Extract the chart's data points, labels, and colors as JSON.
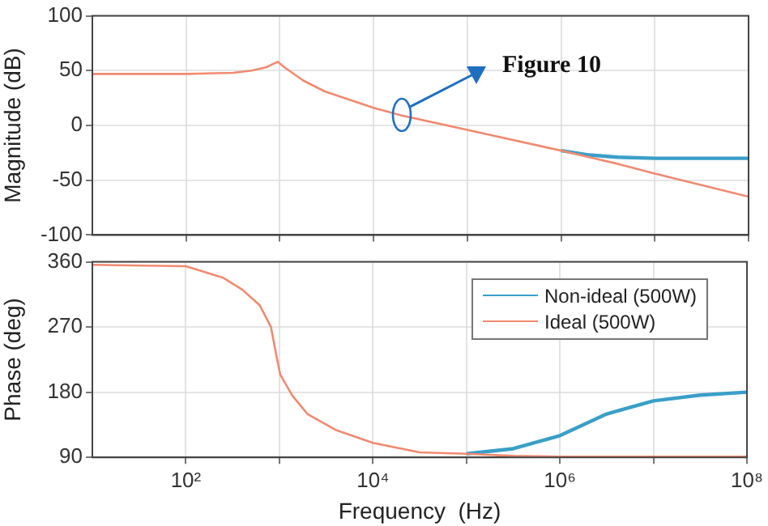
{
  "chart_data": [
    {
      "type": "line",
      "ylabel": "Magnitude (dB)",
      "x": [
        10,
        100,
        316,
        501,
        708,
        891,
        955,
        1122,
        1778,
        3020,
        10000,
        20000,
        100000,
        1000000,
        2000000,
        4000000,
        10000000,
        100000000
      ],
      "series": [
        {
          "color": "#3a9fc8",
          "values": [
            null,
            null,
            null,
            null,
            null,
            null,
            null,
            null,
            null,
            null,
            null,
            null,
            null,
            -23,
            -27,
            -29,
            -30,
            -30
          ]
        },
        {
          "color": "#f08a70",
          "values": [
            47,
            47,
            48,
            50,
            53,
            57,
            58,
            53,
            41,
            31,
            16,
            9,
            -4,
            -23,
            -29,
            -35,
            -44,
            -65
          ]
        }
      ],
      "log": "x",
      "xlim": [
        10,
        100000000
      ],
      "xticks": [
        {
          "value": 100,
          "label": null
        },
        {
          "value": 1000,
          "label": null
        },
        {
          "value": 10000,
          "label": null
        },
        {
          "value": 100000,
          "label": null
        },
        {
          "value": 1000000,
          "label": null
        },
        {
          "value": 10000000,
          "label": null
        },
        {
          "value": 100000000,
          "label": null
        }
      ],
      "ylim": [
        -100,
        100
      ],
      "yticks": [
        -100,
        -50,
        0,
        50,
        100
      ],
      "tick_labels": "y",
      "grid": true,
      "marker": "none",
      "line_style": "solid",
      "annotations": [
        {
          "text": "Figure 10",
          "x": 20000,
          "y": 9
        }
      ]
    },
    {
      "type": "line",
      "ylabel": "Phase (deg)",
      "xlabel": "Frequency  (Hz)",
      "x": [
        10,
        100,
        251,
        398,
        617,
        813,
        933,
        1023,
        1380,
        1995,
        3981,
        10000,
        31623,
        100000,
        316228,
        1000000,
        3162278,
        10000000,
        31622777,
        100000000
      ],
      "series": [
        {
          "name": "Non-ideal (500W)",
          "color": "#3a9fc8",
          "values": [
            null,
            null,
            null,
            null,
            null,
            null,
            null,
            null,
            null,
            null,
            null,
            null,
            null,
            95,
            102,
            120,
            150,
            168,
            176,
            180
          ]
        },
        {
          "name": "Ideal (500W)",
          "color": "#f08a70",
          "values": [
            356,
            354,
            338,
            322,
            300,
            270,
            229,
            204,
            175,
            150,
            128,
            110,
            97,
            95,
            92,
            91,
            91,
            91,
            91,
            91
          ]
        }
      ],
      "log": "x",
      "xlim": [
        10,
        100000000
      ],
      "xticks": [
        {
          "value": 100,
          "label": "10²"
        },
        {
          "value": 1000,
          "label": null
        },
        {
          "value": 10000,
          "label": "10⁴"
        },
        {
          "value": 100000,
          "label": null
        },
        {
          "value": 1000000,
          "label": "10⁶"
        },
        {
          "value": 10000000,
          "label": null
        },
        {
          "value": 100000000,
          "label": "10⁸"
        }
      ],
      "ylim": [
        90,
        360
      ],
      "yticks": [
        90,
        180,
        270,
        360
      ],
      "grid": true,
      "legend": "top right",
      "marker": "none",
      "line_style": "solid"
    }
  ]
}
